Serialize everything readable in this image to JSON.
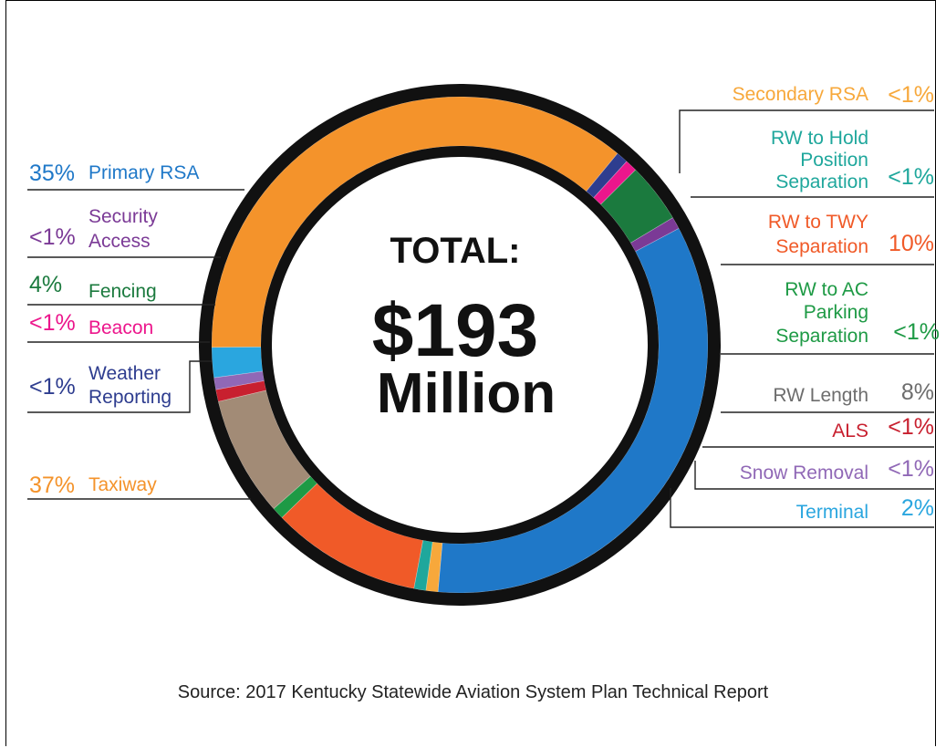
{
  "chart_data": {
    "type": "pie",
    "style": "donut",
    "center_title": "TOTAL:",
    "center_value": "$193",
    "center_unit": "Million",
    "source": "Source: 2017 Kentucky Statewide Aviation System Plan Technical Report",
    "slices": [
      {
        "label": "Primary RSA",
        "pct_text": "35%",
        "value": 35,
        "color": "#1f78c8",
        "text_color": "#1f78c8",
        "side": "left"
      },
      {
        "label": "Secondary RSA",
        "pct_text": "<1%",
        "value": 0.8,
        "color": "#f7a83b",
        "text_color": "#f7a83b",
        "side": "right"
      },
      {
        "label": "RW to Hold Position Separation",
        "pct_text": "<1%",
        "value": 0.8,
        "color": "#1fa79c",
        "text_color": "#1fa79c",
        "side": "right"
      },
      {
        "label": "RW to TWY Separation",
        "pct_text": "10%",
        "value": 10,
        "color": "#f05a28",
        "text_color": "#f05a28",
        "side": "right"
      },
      {
        "label": "RW to AC Parking Separation",
        "pct_text": "<1%",
        "value": 0.8,
        "color": "#1e9a45",
        "text_color": "#1e9a45",
        "side": "right"
      },
      {
        "label": "RW Length",
        "pct_text": "8%",
        "value": 8,
        "color": "#a28b76",
        "text_color": "#6d6d6d",
        "side": "right"
      },
      {
        "label": "ALS",
        "pct_text": "<1%",
        "value": 0.8,
        "color": "#c8202f",
        "text_color": "#c8202f",
        "side": "right"
      },
      {
        "label": "Snow Removal",
        "pct_text": "<1%",
        "value": 0.8,
        "color": "#9068b6",
        "text_color": "#9068b6",
        "side": "right"
      },
      {
        "label": "Terminal",
        "pct_text": "2%",
        "value": 2,
        "color": "#2aa6df",
        "text_color": "#2aa6df",
        "side": "right"
      },
      {
        "label": "Taxiway",
        "pct_text": "37%",
        "value": 37,
        "color": "#f4932b",
        "text_color": "#f4932b",
        "side": "left"
      },
      {
        "label": "Weather Reporting",
        "pct_text": "<1%",
        "value": 0.8,
        "color": "#2e3d8f",
        "text_color": "#2e3d8f",
        "side": "left"
      },
      {
        "label": "Beacon",
        "pct_text": "<1%",
        "value": 0.8,
        "color": "#ec168c",
        "text_color": "#ec168c",
        "side": "left"
      },
      {
        "label": "Fencing",
        "pct_text": "4%",
        "value": 4,
        "color": "#1b7a3e",
        "text_color": "#1b7a3e",
        "side": "left"
      },
      {
        "label": "Security Access",
        "pct_text": "<1%",
        "value": 0.8,
        "color": "#7b3a96",
        "text_color": "#7b3a96",
        "side": "left"
      }
    ]
  }
}
